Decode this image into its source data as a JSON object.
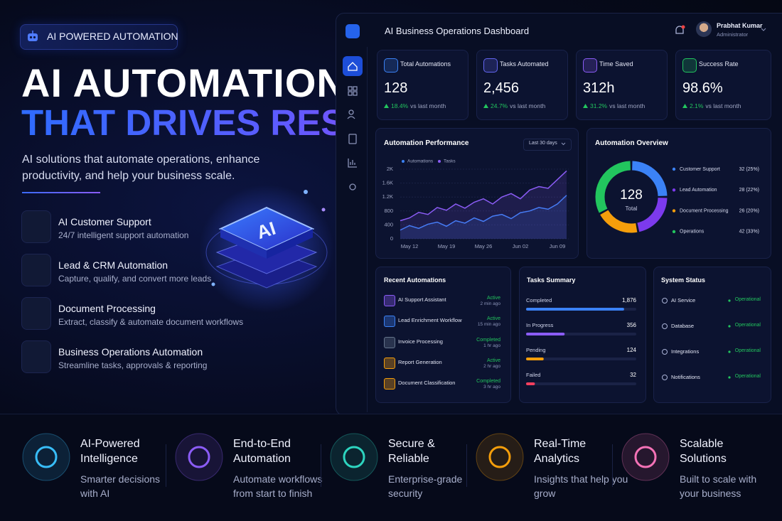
{
  "badge": "AI POWERED AUTOMATION",
  "hero": {
    "title_line1": "AI AUTOMATION",
    "title_line2": "THAT DRIVES RESULTS",
    "subtitle": "AI solutions that automate operations, enhance productivity, and help your business scale.",
    "chip_label": "AI"
  },
  "features": [
    {
      "title": "AI Customer Support",
      "desc": "24/7 intelligent support automation"
    },
    {
      "title": "Lead & CRM Automation",
      "desc": "Capture, qualify, and convert more leads"
    },
    {
      "title": "Document Processing",
      "desc": "Extract, classify & automate document workflows"
    },
    {
      "title": "Business Operations Automation",
      "desc": "Streamline tasks, approvals & reporting"
    }
  ],
  "dashboard": {
    "title": "AI Business Operations Dashboard",
    "user": {
      "name": "Prabhat Kumar",
      "role": "Administrator"
    },
    "stats": [
      {
        "label": "Total Automations",
        "value": "128",
        "change": "18.4%",
        "note": "vs last month"
      },
      {
        "label": "Tasks Automated",
        "value": "2,456",
        "change": "24.7%",
        "note": "vs last month"
      },
      {
        "label": "Time Saved",
        "value": "312h",
        "change": "31.2%",
        "note": "vs last month"
      },
      {
        "label": "Success Rate",
        "value": "98.6%",
        "change": "2.1%",
        "note": "vs last month"
      }
    ],
    "recent": {
      "title": "Recent Automations",
      "rows": [
        {
          "name": "AI Support Assistant",
          "status": "Active",
          "time": "2 min ago"
        },
        {
          "name": "Lead Enrichment Workflow",
          "status": "Active",
          "time": "15 min ago"
        },
        {
          "name": "Invoice Processing",
          "status": "Completed",
          "time": "1 hr ago"
        },
        {
          "name": "Report Generation",
          "status": "Active",
          "time": "2 hr ago"
        },
        {
          "name": "Document Classification",
          "status": "Completed",
          "time": "3 hr ago"
        }
      ]
    },
    "tasks": {
      "title": "Tasks Summary",
      "rows": [
        {
          "label": "Completed",
          "value": "1,876",
          "progress": 89,
          "color": "#3b82f6"
        },
        {
          "label": "In Progress",
          "value": "356",
          "progress": 35,
          "color": "#8b5cf6"
        },
        {
          "label": "Pending",
          "value": "124",
          "progress": 16,
          "color": "#f59e0b"
        },
        {
          "label": "Failed",
          "value": "32",
          "progress": 8,
          "color": "#f43f5e"
        }
      ]
    },
    "system": {
      "title": "System Status",
      "rows": [
        {
          "name": "AI Service",
          "status": "Operational"
        },
        {
          "name": "Database",
          "status": "Operational"
        },
        {
          "name": "Integrations",
          "status": "Operational"
        },
        {
          "name": "Notifications",
          "status": "Operational"
        }
      ]
    }
  },
  "benefits": [
    {
      "title": "AI-Powered Intelligence",
      "desc": "Smarter decisions with AI"
    },
    {
      "title": "End-to-End Automation",
      "desc": "Automate workflows from start to finish"
    },
    {
      "title": "Secure & Reliable",
      "desc": "Enterprise-grade security"
    },
    {
      "title": "Real-Time Analytics",
      "desc": "Insights that help you grow"
    },
    {
      "title": "Scalable Solutions",
      "desc": "Built to scale with your business"
    }
  ],
  "chart_data": [
    {
      "type": "line",
      "title": "Automation Performance",
      "range_label": "Last 30 days",
      "categories": [
        null,
        "May 12",
        null,
        null,
        null,
        "May 19",
        null,
        null,
        null,
        "May 26",
        null,
        null,
        null,
        "Jun 02",
        null,
        null,
        null,
        "Jun 09",
        null
      ],
      "series": [
        {
          "name": "Automations",
          "color": "#3b82f6",
          "values": [
            250,
            380,
            300,
            420,
            480,
            360,
            520,
            450,
            600,
            500,
            650,
            700,
            580,
            750,
            800,
            900,
            850,
            1000,
            1250
          ]
        },
        {
          "name": "Tasks",
          "color": "#8b5cf6",
          "values": [
            520,
            600,
            760,
            700,
            900,
            820,
            1000,
            880,
            1050,
            1150,
            1000,
            1200,
            1300,
            1150,
            1400,
            1500,
            1450,
            1700,
            1950
          ]
        }
      ],
      "ylim": [
        0,
        2000
      ],
      "yticks": [
        0,
        400,
        800,
        {
          "value": 1200,
          "label": "1.2K"
        },
        {
          "value": 1600,
          "label": "1.6K"
        },
        {
          "value": 2000,
          "label": "2K"
        }
      ],
      "grid": true
    },
    {
      "type": "pie",
      "title": "Automation Overview",
      "center_value": "128",
      "center_label": "Total",
      "categories": [
        "Customer Support",
        "Lead Automation",
        "Document Processing",
        "Operations"
      ],
      "values": [
        32,
        28,
        26,
        42
      ],
      "value_labels": [
        "32 (25%)",
        "28 (22%)",
        "26 (20%)",
        "42 (33%)"
      ],
      "colors": [
        "#3b82f6",
        "#7c3aed",
        "#f59e0b",
        "#22c55e"
      ]
    }
  ]
}
